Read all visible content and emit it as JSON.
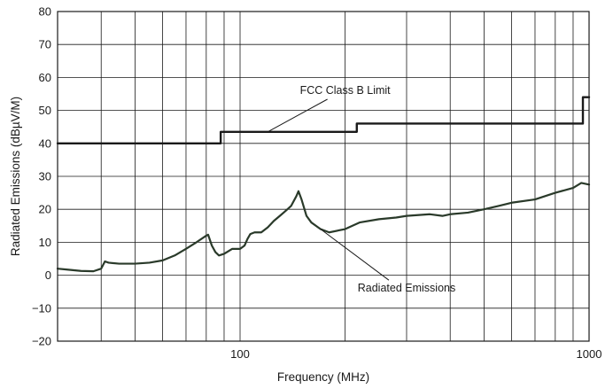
{
  "chart_data": {
    "type": "line",
    "xlabel": "Frequency (MHz)",
    "ylabel": "Radiated Emissions (dBµV/M)",
    "x_scale": "log",
    "xlim": [
      30,
      1000
    ],
    "ylim": [
      -20,
      80
    ],
    "x_ticks": [
      100,
      1000
    ],
    "y_ticks": [
      -20,
      -10,
      0,
      10,
      20,
      30,
      40,
      50,
      60,
      70,
      80
    ],
    "grid": true,
    "series": [
      {
        "name": "FCC Class B Limit",
        "color": "#1a1a1a",
        "step": true,
        "points": [
          [
            30,
            40
          ],
          [
            88,
            40
          ],
          [
            88,
            43.5
          ],
          [
            216,
            43.5
          ],
          [
            216,
            46
          ],
          [
            960,
            46
          ],
          [
            960,
            54
          ],
          [
            1000,
            54
          ]
        ]
      },
      {
        "name": "Radiated Emissions",
        "color": "#2a3a2a",
        "step": false,
        "points": [
          [
            30,
            2
          ],
          [
            32,
            1.7
          ],
          [
            35,
            1.3
          ],
          [
            38,
            1.2
          ],
          [
            40,
            2
          ],
          [
            41,
            4.2
          ],
          [
            42,
            3.8
          ],
          [
            45,
            3.5
          ],
          [
            50,
            3.5
          ],
          [
            55,
            3.8
          ],
          [
            60,
            4.5
          ],
          [
            65,
            6
          ],
          [
            70,
            8
          ],
          [
            75,
            10
          ],
          [
            80,
            12
          ],
          [
            81,
            12.3
          ],
          [
            83,
            9
          ],
          [
            85,
            7
          ],
          [
            87,
            6
          ],
          [
            90,
            6.5
          ],
          [
            95,
            8
          ],
          [
            100,
            8
          ],
          [
            103,
            9
          ],
          [
            105,
            11
          ],
          [
            107,
            12.5
          ],
          [
            110,
            13
          ],
          [
            115,
            13
          ],
          [
            120,
            14.5
          ],
          [
            125,
            16.5
          ],
          [
            130,
            18
          ],
          [
            135,
            19.5
          ],
          [
            140,
            21
          ],
          [
            145,
            24
          ],
          [
            147,
            25.5
          ],
          [
            150,
            23
          ],
          [
            155,
            18
          ],
          [
            160,
            16
          ],
          [
            170,
            14
          ],
          [
            180,
            13
          ],
          [
            200,
            14
          ],
          [
            220,
            16
          ],
          [
            250,
            17
          ],
          [
            280,
            17.5
          ],
          [
            300,
            18
          ],
          [
            350,
            18.5
          ],
          [
            380,
            18
          ],
          [
            400,
            18.5
          ],
          [
            450,
            19
          ],
          [
            500,
            20
          ],
          [
            550,
            21
          ],
          [
            600,
            22
          ],
          [
            700,
            23
          ],
          [
            800,
            25
          ],
          [
            900,
            26.5
          ],
          [
            950,
            28
          ],
          [
            1000,
            27.5
          ]
        ]
      }
    ],
    "annotations": [
      {
        "text": "FCC Class B Limit",
        "x": 200,
        "y": 55,
        "target": [
          120,
          43.5
        ]
      },
      {
        "text": "Radiated Emissions",
        "x": 300,
        "y": -5,
        "target": [
          170,
          14
        ]
      }
    ]
  }
}
